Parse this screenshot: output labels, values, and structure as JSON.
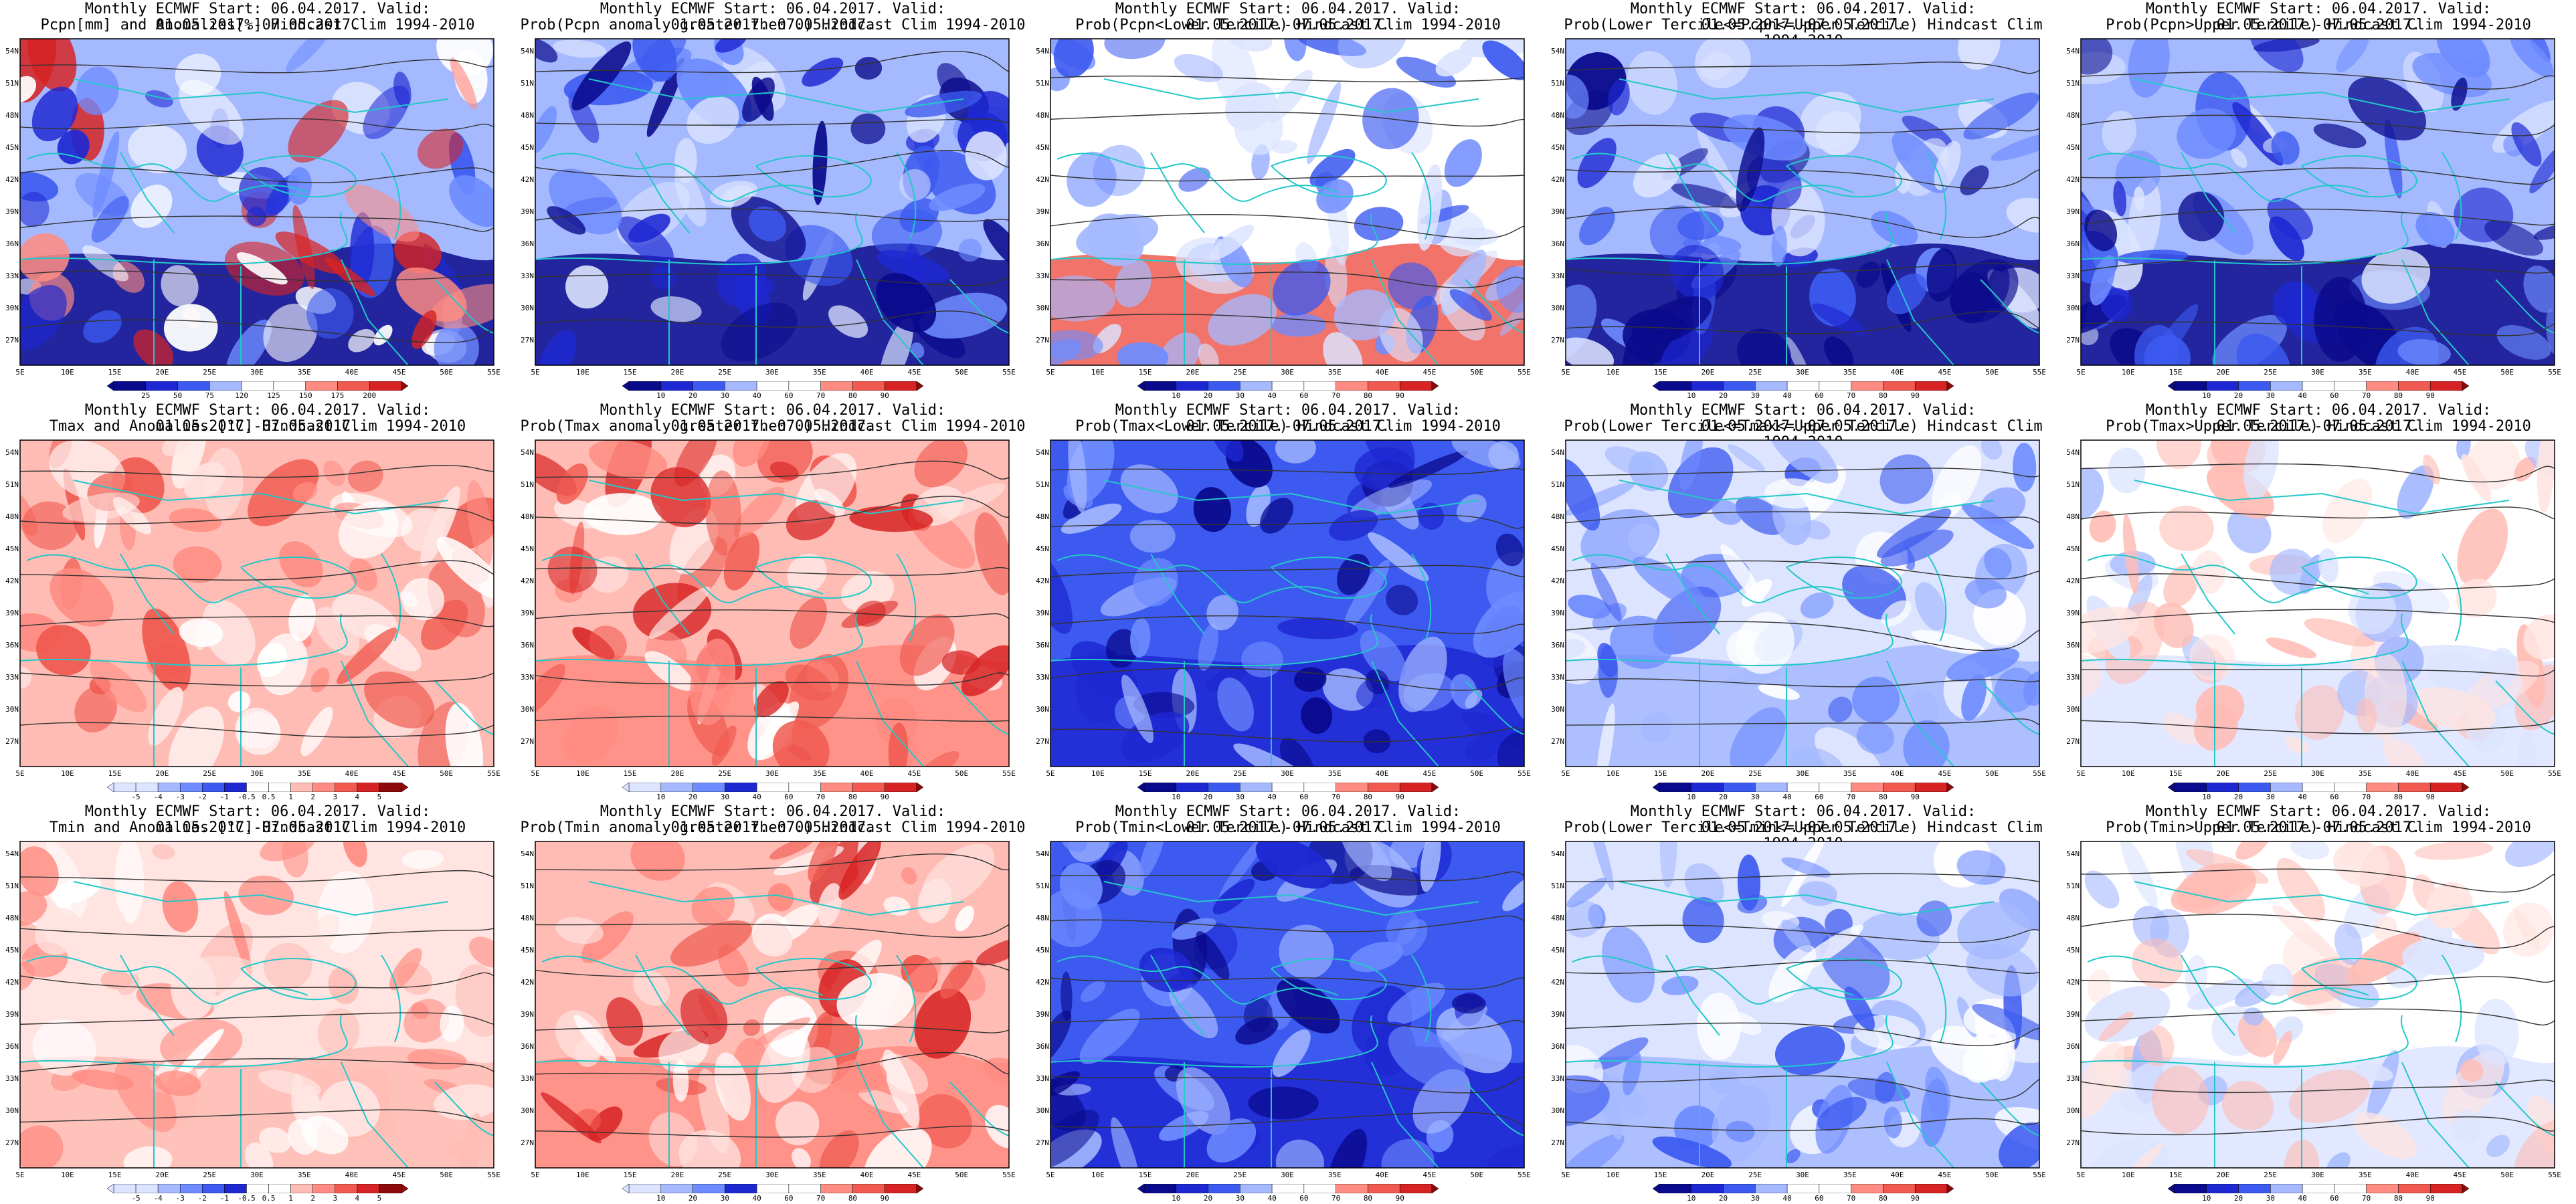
{
  "rows": [
    {
      "panels": [
        {
          "line1": "Monthly ECMWF Start: 06.04.2017. Valid: 01.05.2017.-07.05.2017.",
          "line2": "Pcpn[mm] and Anomalies[%] Hindcast Clim 1994-2010",
          "scheme": "anom",
          "legend": [
            "25",
            "50",
            "75",
            "120",
            "125",
            "150",
            "175",
            "200"
          ]
        },
        {
          "line1": "Monthly ECMWF Start: 06.04.2017. Valid: 01.05.2017.-07.05.2017.",
          "line2": "Prob(Pcpn anomaly greater then 0) Hindcast Clim 1994-2010",
          "scheme": "blue",
          "legend": [
            "10",
            "20",
            "30",
            "40",
            "60",
            "70",
            "80",
            "90"
          ]
        },
        {
          "line1": "Monthly ECMWF Start: 06.04.2017. Valid: 01.05.2017.-07.05.2017.",
          "line2": "Prob(Pcpn<Lower Tercile) Hindcast Clim 1994-2010",
          "scheme": "mixred",
          "legend": [
            "10",
            "20",
            "30",
            "40",
            "60",
            "70",
            "80",
            "90"
          ]
        },
        {
          "line1": "Monthly ECMWF Start: 06.04.2017. Valid: 01.05.2017.-07.05.2017.",
          "line2": "Prob(Lower Tercile<=Pcpn<=Upper Tercile) Hindcast Clim 1994-2010",
          "scheme": "blue",
          "legend": [
            "10",
            "20",
            "30",
            "40",
            "60",
            "70",
            "80",
            "90"
          ]
        },
        {
          "line1": "Monthly ECMWF Start: 06.04.2017. Valid: 01.05.2017.-07.05.2017.",
          "line2": "Prob(Pcpn>Upper Tercile) Hindcast Clim 1994-2010",
          "scheme": "blue",
          "legend": [
            "10",
            "20",
            "30",
            "40",
            "60",
            "70",
            "80",
            "90"
          ]
        }
      ]
    },
    {
      "panels": [
        {
          "line1": "Monthly ECMWF Start: 06.04.2017. Valid: 01.05.2017.-07.05.2017.",
          "line2": "Tmax and Anomalies [°C] Hindcast Clim 1994-2010",
          "scheme": "warm",
          "legend": [
            "-5",
            "-4",
            "-3",
            "-2",
            "-1",
            "-0.5",
            "0.5",
            "1",
            "2",
            "3",
            "4",
            "5"
          ]
        },
        {
          "line1": "Monthly ECMWF Start: 06.04.2017. Valid: 01.05.2017.-07.05.2017.",
          "line2": "Prob(Tmax anomaly greater then 0) Hindcast Clim 1994-2010",
          "scheme": "red",
          "legend": [
            "10",
            "20",
            "30",
            "40",
            "60",
            "70",
            "80",
            "90"
          ]
        },
        {
          "line1": "Monthly ECMWF Start: 06.04.2017. Valid: 01.05.2017.-07.05.2017.",
          "line2": "Prob(Tmax<Lower Tercile) Hindcast Clim 1994-2010",
          "scheme": "deepblue",
          "legend": [
            "10",
            "20",
            "30",
            "40",
            "60",
            "70",
            "80",
            "90"
          ]
        },
        {
          "line1": "Monthly ECMWF Start: 06.04.2017. Valid: 01.05.2017.-07.05.2017.",
          "line2": "Prob(Lower Tercile<=Tmax<=Upper Tercile) Hindcast Clim 1994-2010",
          "scheme": "lightblue",
          "legend": [
            "10",
            "20",
            "30",
            "40",
            "60",
            "70",
            "80",
            "90"
          ]
        },
        {
          "line1": "Monthly ECMWF Start: 06.04.2017. Valid: 01.05.2017.-07.05.2017.",
          "line2": "Prob(Tmax>Upper Tercile) Hindcast Clim 1994-2010",
          "scheme": "pale",
          "legend": [
            "10",
            "20",
            "30",
            "40",
            "60",
            "70",
            "80",
            "90"
          ]
        }
      ]
    },
    {
      "panels": [
        {
          "line1": "Monthly ECMWF Start: 06.04.2017. Valid: 01.05.2017.-07.05.2017.",
          "line2": "Tmin and Anomalies [°C] Hindcast Clim 1994-2010",
          "scheme": "warmlight",
          "legend": [
            "-5",
            "-4",
            "-3",
            "-2",
            "-1",
            "-0.5",
            "0.5",
            "1",
            "2",
            "3",
            "4",
            "5"
          ]
        },
        {
          "line1": "Monthly ECMWF Start: 06.04.2017. Valid: 01.05.2017.-07.05.2017.",
          "line2": "Prob(Tmin anomaly greater then 0) Hindcast Clim 1994-2010",
          "scheme": "red",
          "legend": [
            "10",
            "20",
            "30",
            "40",
            "60",
            "70",
            "80",
            "90"
          ]
        },
        {
          "line1": "Monthly ECMWF Start: 06.04.2017. Valid: 01.05.2017.-07.05.2017.",
          "line2": "Prob(Tmin<Lower Tercile) Hindcast Clim 1994-2010",
          "scheme": "deepblue",
          "legend": [
            "10",
            "20",
            "30",
            "40",
            "60",
            "70",
            "80",
            "90"
          ]
        },
        {
          "line1": "Monthly ECMWF Start: 06.04.2017. Valid: 01.05.2017.-07.05.2017.",
          "line2": "Prob(Lower Tercile<=Tmin<=Upper Tercile) Hindcast Clim 1994-2010",
          "scheme": "lightblue",
          "legend": [
            "10",
            "20",
            "30",
            "40",
            "60",
            "70",
            "80",
            "90"
          ]
        },
        {
          "line1": "Monthly ECMWF Start: 06.04.2017. Valid: 01.05.2017.-07.05.2017.",
          "line2": "Prob(Tmin>Upper Tercile) Hindcast Clim 1994-2010",
          "scheme": "pale",
          "legend": [
            "10",
            "20",
            "30",
            "40",
            "60",
            "70",
            "80",
            "90"
          ]
        }
      ]
    }
  ],
  "lat_labels": [
    "54N",
    "51N",
    "48N",
    "45N",
    "42N",
    "39N",
    "36N",
    "33N",
    "30N",
    "27N"
  ],
  "lon_labels": [
    "5E",
    "10E",
    "15E",
    "20E",
    "25E",
    "30E",
    "35E",
    "40E",
    "45E",
    "50E",
    "55E"
  ],
  "colors": {
    "coast": "#23c8c8",
    "contour": "#333333",
    "blue": [
      "#0a0a8c",
      "#1e28d2",
      "#3c5af0",
      "#6e8cff",
      "#a5b9ff",
      "#dce4ff"
    ],
    "red": [
      "#ffe4e1",
      "#ffbcb4",
      "#ff8c82",
      "#f05a50",
      "#d72323",
      "#8c0a0a"
    ]
  }
}
